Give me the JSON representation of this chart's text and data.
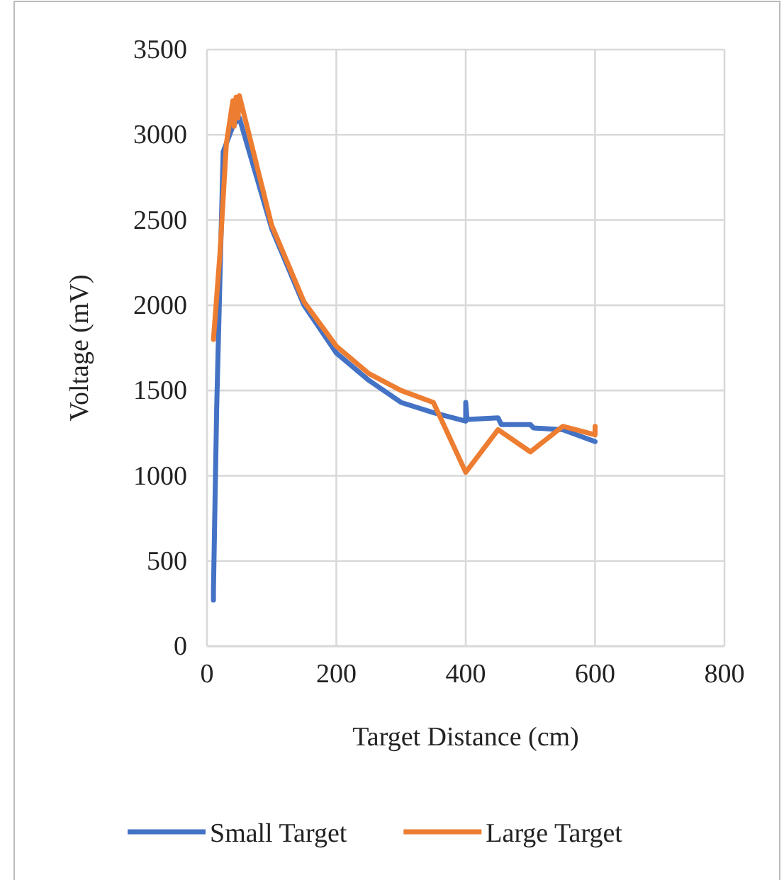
{
  "chart_data": {
    "type": "line",
    "xlabel": "Target Distance (cm)",
    "ylabel": "Voltage (mV)",
    "xlim": [
      0,
      800
    ],
    "xticks": [
      0,
      200,
      400,
      600,
      800
    ],
    "ylim": [
      0,
      3500
    ],
    "yticks": [
      0,
      500,
      1000,
      1500,
      2000,
      2500,
      3000,
      3500
    ],
    "grid": true,
    "legend": "bottom",
    "marker": "none",
    "line_style": "solid",
    "series": [
      {
        "name": "Small Target",
        "color": "#4472c4",
        "x": [
          10,
          10,
          15,
          25,
          30,
          40,
          50,
          100,
          150,
          200,
          250,
          300,
          350,
          400,
          400,
          402,
          450,
          455,
          500,
          505,
          550,
          600
        ],
        "values": [
          270,
          330,
          1400,
          2900,
          2950,
          3050,
          3100,
          2450,
          2000,
          1720,
          1560,
          1430,
          1370,
          1320,
          1430,
          1330,
          1340,
          1300,
          1300,
          1280,
          1270,
          1200
        ]
      },
      {
        "name": "Large Target",
        "color": "#ed7d31",
        "x": [
          10,
          20,
          30,
          40,
          42,
          45,
          48,
          50,
          100,
          150,
          200,
          250,
          300,
          350,
          400,
          450,
          500,
          550,
          600,
          600
        ],
        "values": [
          1800,
          2300,
          2950,
          3200,
          3050,
          3220,
          3100,
          3230,
          2470,
          2020,
          1760,
          1600,
          1500,
          1430,
          1020,
          1270,
          1140,
          1290,
          1240,
          1290
        ]
      }
    ]
  }
}
